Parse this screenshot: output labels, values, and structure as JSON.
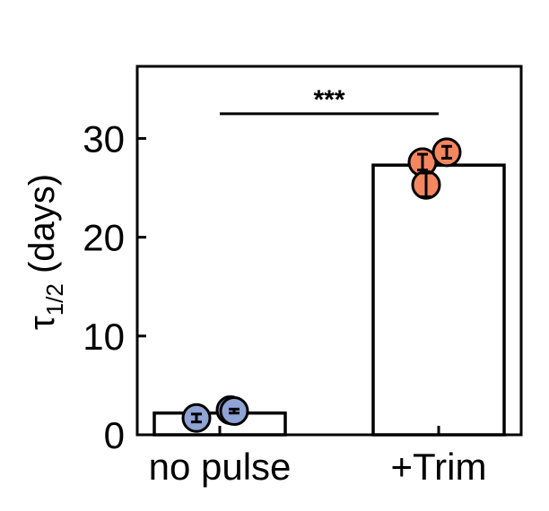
{
  "chart_data": {
    "type": "bar",
    "categories": [
      "no pulse",
      "+Trim"
    ],
    "values": [
      2.2,
      27.3
    ],
    "ylabel_main": "τ",
    "ylabel_sub": "1/2",
    "ylabel_unit": " (days)",
    "ylim": [
      0,
      37.3
    ],
    "yticks": [
      0,
      10,
      20,
      30
    ],
    "grid": false,
    "bar_fill": "#ffffff",
    "bar_edge": "#000000",
    "points": [
      {
        "category": "no pulse",
        "value": 1.7,
        "err": 0.4,
        "color": "#8fa3d4"
      },
      {
        "category": "no pulse",
        "value": 2.5,
        "err": 0.3,
        "color": "#8fa3d4"
      },
      {
        "category": "no pulse",
        "value": 2.4,
        "err": 0.2,
        "color": "#8fa3d4"
      },
      {
        "category": "+Trim",
        "value": 27.6,
        "err": 0.8,
        "color": "#f4875f"
      },
      {
        "category": "+Trim",
        "value": 28.6,
        "err": 0.6,
        "color": "#f4875f"
      },
      {
        "category": "+Trim",
        "value": 25.3,
        "err": 1.2,
        "color": "#f4875f"
      }
    ],
    "significance": {
      "label": "***",
      "from": "no pulse",
      "to": "+Trim",
      "y": 32.5
    }
  }
}
